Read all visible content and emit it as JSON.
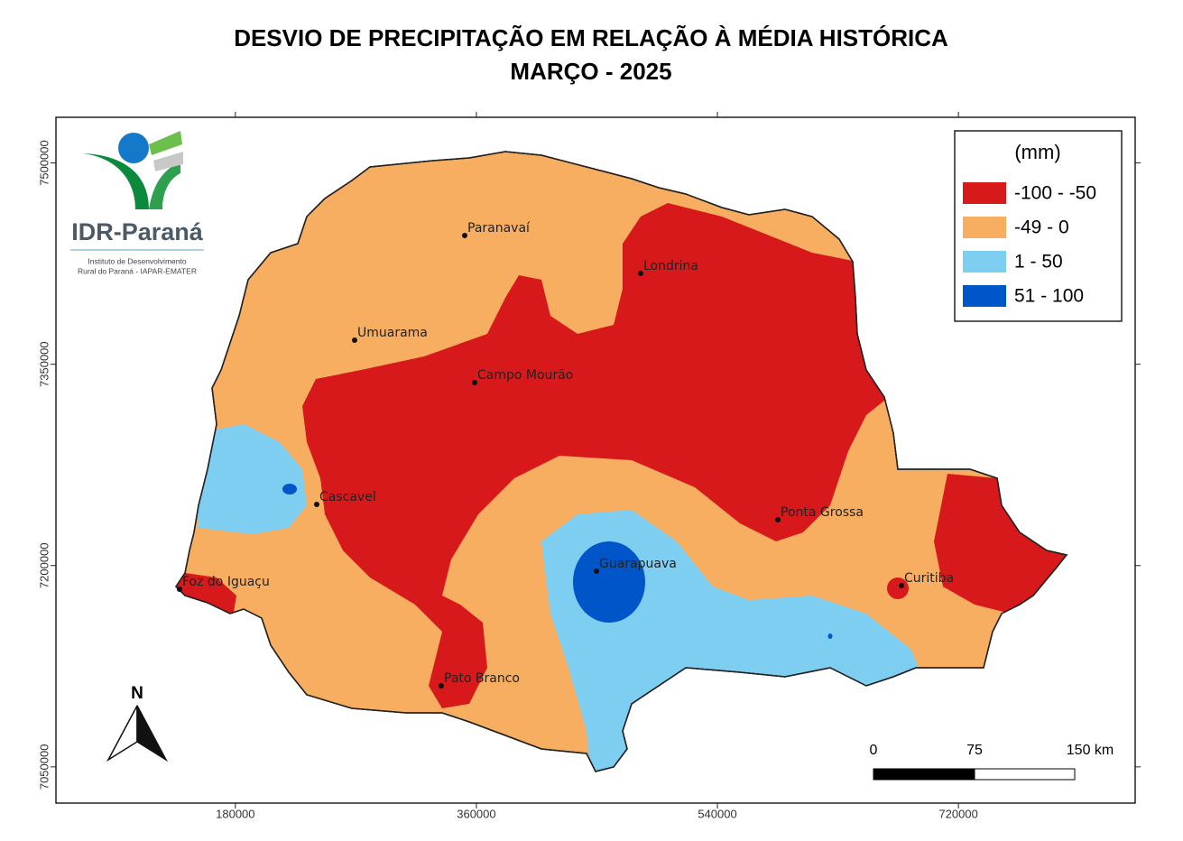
{
  "title": "DESVIO DE PRECIPITAÇÃO EM RELAÇÃO À MÉDIA HISTÓRICA",
  "subtitle": "MARÇO - 2025",
  "logo": {
    "name": "IDR-Paraná",
    "lines": [
      "Instituto de Desenvolvimento",
      "Rural do Paraná - IAPAR-EMATER"
    ]
  },
  "north_label": "N",
  "legend": {
    "title": "(mm)",
    "items": [
      {
        "label": "-100 -  -50",
        "color": "#d7191c"
      },
      {
        "label": "-49 - 0",
        "color": "#f7ae60"
      },
      {
        "label": "1 - 50",
        "color": "#7ecef2"
      },
      {
        "label": "51 - 100",
        "color": "#0055c8"
      }
    ]
  },
  "cities": [
    "Paranavaí",
    "Londrina",
    "Umuarama",
    "Campo Mourão",
    "Cascavel",
    "Ponta Grossa",
    "Guarapuava",
    "Curitiba",
    "Foz do Iguaçu",
    "Pato Branco"
  ],
  "scale_bar": {
    "labels": [
      "0",
      "75",
      "150 km"
    ]
  },
  "axes": {
    "xlim": [
      46000,
      852000
    ],
    "xticks": [
      180000,
      360000,
      540000,
      720000
    ],
    "ylim": [
      7023000,
      7534000
    ],
    "yticks": [
      7500000,
      7350000,
      7200000,
      7050000
    ]
  }
}
